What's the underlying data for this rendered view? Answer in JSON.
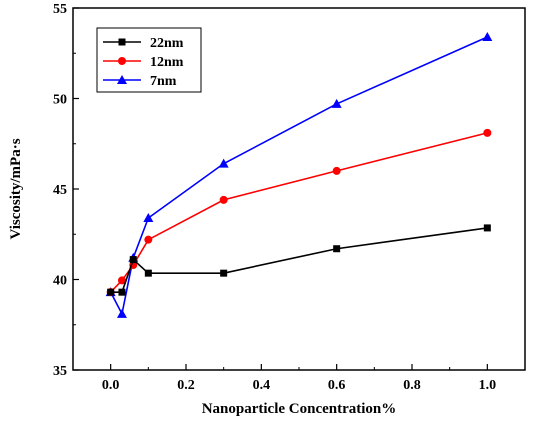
{
  "chart_data": {
    "type": "line",
    "title": "",
    "xlabel": "Nanoparticle Concentration%",
    "ylabel": "Viscosity/mPa·s",
    "xlim": [
      -0.1,
      1.1
    ],
    "ylim": [
      35,
      55
    ],
    "xticks": [
      0.0,
      0.2,
      0.4,
      0.6,
      0.8,
      1.0
    ],
    "xtick_labels": [
      "0.0",
      "0.2",
      "0.4",
      "0.6",
      "0.8",
      "1.0"
    ],
    "yticks": [
      35,
      40,
      45,
      50,
      55
    ],
    "ytick_labels": [
      "35",
      "40",
      "45",
      "50",
      "55"
    ],
    "grid": false,
    "legend_position": "top-left",
    "x": [
      0,
      0.03,
      0.06,
      0.1,
      0.3,
      0.6,
      1.0
    ],
    "series": [
      {
        "name": "22nm",
        "marker": "square",
        "color": "#000000",
        "values": [
          39.3,
          39.3,
          41.1,
          40.35,
          40.35,
          41.7,
          42.85
        ]
      },
      {
        "name": "12nm",
        "marker": "circle",
        "color": "#ff0000",
        "values": [
          39.3,
          39.95,
          40.8,
          42.2,
          44.4,
          46.0,
          48.1
        ]
      },
      {
        "name": "7nm",
        "marker": "triangle",
        "color": "#0000ff",
        "values": [
          39.3,
          38.1,
          41.2,
          43.4,
          46.4,
          49.7,
          53.4
        ]
      }
    ]
  }
}
